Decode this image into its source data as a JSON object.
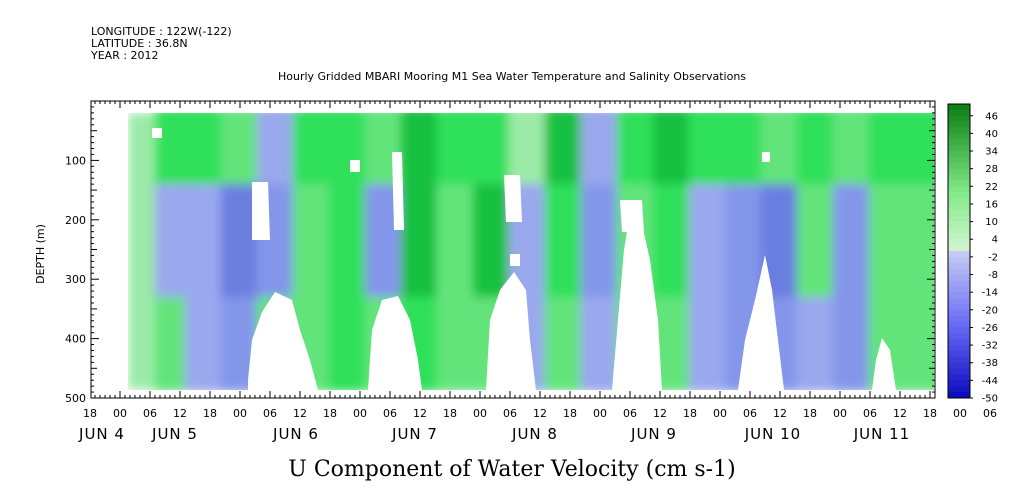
{
  "header": {
    "longitude": "LONGITUDE : 122W(-122)",
    "latitude": "LATITUDE : 36.8N",
    "year": "YEAR : 2012",
    "title": "Hourly Gridded MBARI Mooring M1 Sea Water Temperature and Salinity Observations"
  },
  "chart_data": {
    "type": "heatmap",
    "title": "Hourly Gridded MBARI Mooring M1 Sea Water Temperature and Salinity Observations",
    "xlabel": "U Component of Water Velocity (cm s-1)",
    "ylabel": "DEPTH (m)",
    "x_hour_ticks": [
      "18",
      "00",
      "06",
      "12",
      "18",
      "00",
      "06",
      "12",
      "18",
      "00",
      "06",
      "12",
      "18",
      "00",
      "06",
      "12",
      "18",
      "00",
      "06",
      "12",
      "18",
      "00",
      "06",
      "12",
      "18",
      "00",
      "06",
      "12",
      "18",
      "00",
      "06",
      "12",
      "18",
      "00",
      "06",
      "12",
      "18",
      "00",
      "06",
      "12",
      "18",
      "00",
      "06",
      "12",
      "18"
    ],
    "x_day_labels": [
      "JUN  4",
      "JUN  5",
      "JUN  6",
      "JUN  7",
      "JUN  8",
      "JUN  9",
      "JUN 10",
      "JUN 11"
    ],
    "y_ticks": [
      "100",
      "200",
      "300",
      "400",
      "500"
    ],
    "y_range": [
      0,
      500
    ],
    "y_reversed": true,
    "colorbar_labels": [
      "46",
      "40",
      "34",
      "28",
      "22",
      "16",
      "10",
      "4",
      "-2",
      "-8",
      "-14",
      "-20",
      "-26",
      "-32",
      "-38",
      "-44",
      "-50"
    ],
    "colorbar_range": [
      -50,
      50
    ],
    "colors": {
      "positive": "#2ee05a",
      "light_positive": "#9ceaa8",
      "negative": "#9aa8ee",
      "strong_negative": "#6a7ee0",
      "missing": "#ffffff"
    },
    "columns": [
      {
        "day_offset": 0.35,
        "u_shallow": 20,
        "u_mid": -6,
        "u_deep": 4
      },
      {
        "day_offset": 0.6,
        "u_shallow": 14,
        "u_mid": -10,
        "u_deep": -4
      },
      {
        "day_offset": 0.9,
        "u_shallow": 4,
        "u_mid": -18,
        "u_deep": -12
      },
      {
        "day_offset": 1.2,
        "u_shallow": -6,
        "u_mid": -16,
        "u_deep": 6
      },
      {
        "day_offset": 1.5,
        "u_shallow": 18,
        "u_mid": 4,
        "u_deep": 10
      },
      {
        "day_offset": 1.8,
        "u_shallow": 22,
        "u_mid": 16,
        "u_deep": 18
      },
      {
        "day_offset": 2.1,
        "u_shallow": 10,
        "u_mid": -12,
        "u_deep": 8
      },
      {
        "day_offset": 2.4,
        "u_shallow": 24,
        "u_mid": 28,
        "u_deep": 14
      },
      {
        "day_offset": 2.7,
        "u_shallow": 16,
        "u_mid": 10,
        "u_deep": 4
      },
      {
        "day_offset": 3.0,
        "u_shallow": 22,
        "u_mid": 26,
        "u_deep": 12
      },
      {
        "day_offset": 3.3,
        "u_shallow": 2,
        "u_mid": -8,
        "u_deep": -4
      },
      {
        "day_offset": 3.6,
        "u_shallow": 24,
        "u_mid": 18,
        "u_deep": 6
      },
      {
        "day_offset": 3.9,
        "u_shallow": -4,
        "u_mid": -12,
        "u_deep": -10
      },
      {
        "day_offset": 4.2,
        "u_shallow": 20,
        "u_mid": 12,
        "u_deep": 4
      },
      {
        "day_offset": 4.5,
        "u_shallow": 26,
        "u_mid": 20,
        "u_deep": 8
      },
      {
        "day_offset": 4.8,
        "u_shallow": 22,
        "u_mid": -6,
        "u_deep": -10
      },
      {
        "day_offset": 5.1,
        "u_shallow": 18,
        "u_mid": -14,
        "u_deep": -16
      },
      {
        "day_offset": 5.4,
        "u_shallow": 12,
        "u_mid": -18,
        "u_deep": -14
      },
      {
        "day_offset": 5.7,
        "u_shallow": 20,
        "u_mid": 6,
        "u_deep": -6
      },
      {
        "day_offset": 6.0,
        "u_shallow": 10,
        "u_mid": -16,
        "u_deep": -12
      },
      {
        "day_offset": 6.3,
        "u_shallow": 22,
        "u_mid": 10,
        "u_deep": 6
      },
      {
        "day_offset": 6.6,
        "u_shallow": 16,
        "u_mid": 12,
        "u_deep": 4
      }
    ]
  }
}
